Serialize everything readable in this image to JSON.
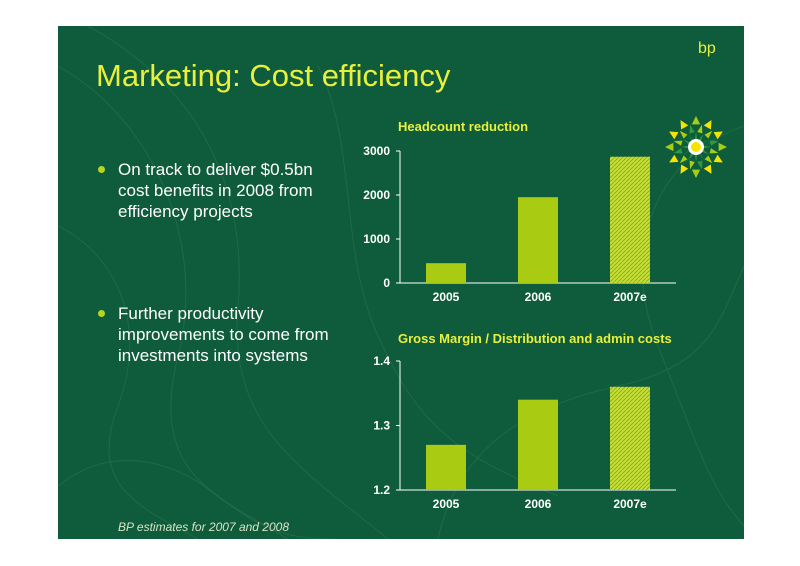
{
  "slide": {
    "title": "Marketing: Cost efficiency",
    "brand": "bp",
    "bullets": [
      "On track to deliver $0.5bn cost benefits in 2008 from efficiency projects",
      "Further productivity improvements to come from investments into systems"
    ],
    "footnote": "BP estimates for 2007 and 2008"
  },
  "colors": {
    "background": "#0f5c3c",
    "accent_text": "#e8ef3c",
    "bar_actual": "#a9cc12",
    "bar_estimate": "#c6de3c",
    "bullet": "#b7d624",
    "axis": "#ffffff"
  },
  "icons": {
    "logo": "bp-helios-logo"
  },
  "chart_data": [
    {
      "type": "bar",
      "title": "Headcount reduction",
      "categories": [
        "2005",
        "2006",
        "2007e"
      ],
      "values": [
        450,
        1950,
        2870
      ],
      "estimated": [
        false,
        false,
        true
      ],
      "ylim": [
        0,
        3000
      ],
      "yticks": [
        "0",
        "1000",
        "2000",
        "3000"
      ],
      "xlabel": "",
      "ylabel": ""
    },
    {
      "type": "bar",
      "title": "Gross Margin / Distribution and admin costs",
      "categories": [
        "2005",
        "2006",
        "2007e"
      ],
      "values": [
        1.27,
        1.34,
        1.36
      ],
      "estimated": [
        false,
        false,
        true
      ],
      "ylim": [
        1.2,
        1.4
      ],
      "yticks": [
        "1.2",
        "1.3",
        "1.4"
      ],
      "xlabel": "",
      "ylabel": ""
    }
  ]
}
